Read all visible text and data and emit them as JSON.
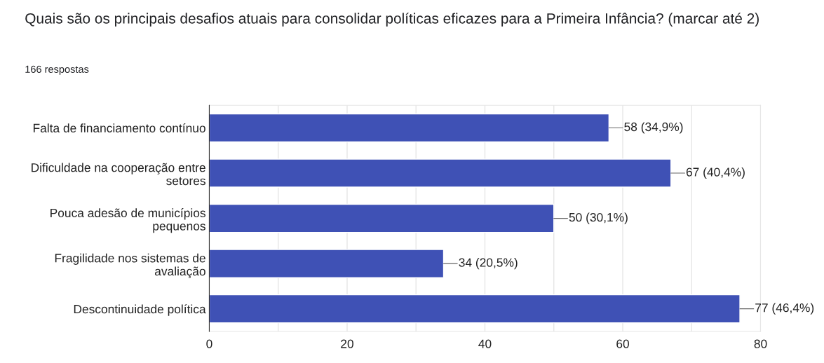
{
  "chart_data": {
    "type": "bar",
    "orientation": "horizontal",
    "title": "Quais são os principais desafios atuais para consolidar políticas eficazes para a Primeira Infância? (marcar até 2)",
    "subtitle": "166 respostas",
    "categories": [
      "Falta de financiamento contínuo",
      "Dificuldade na cooperação entre setores",
      "Pouca adesão de municípios pequenos",
      "Fragilidade nos sistemas de avaliação",
      "Descontinuidade política"
    ],
    "values": [
      58,
      67,
      50,
      34,
      77
    ],
    "color": "#3f51b5",
    "value_labels": [
      "58 (34,9%)",
      "67 (40,4%)",
      "50 (30,1%)",
      "34 (20,5%)",
      "77 (46,4%)"
    ],
    "xlim": [
      0,
      80
    ],
    "xticks": [
      0,
      {
        "value": 10,
        "label": null
      },
      20,
      {
        "value": 30,
        "label": null
      },
      40,
      {
        "value": 50,
        "label": null
      },
      60,
      {
        "value": 70,
        "label": null
      },
      80
    ],
    "grid": "x",
    "legend": false
  }
}
